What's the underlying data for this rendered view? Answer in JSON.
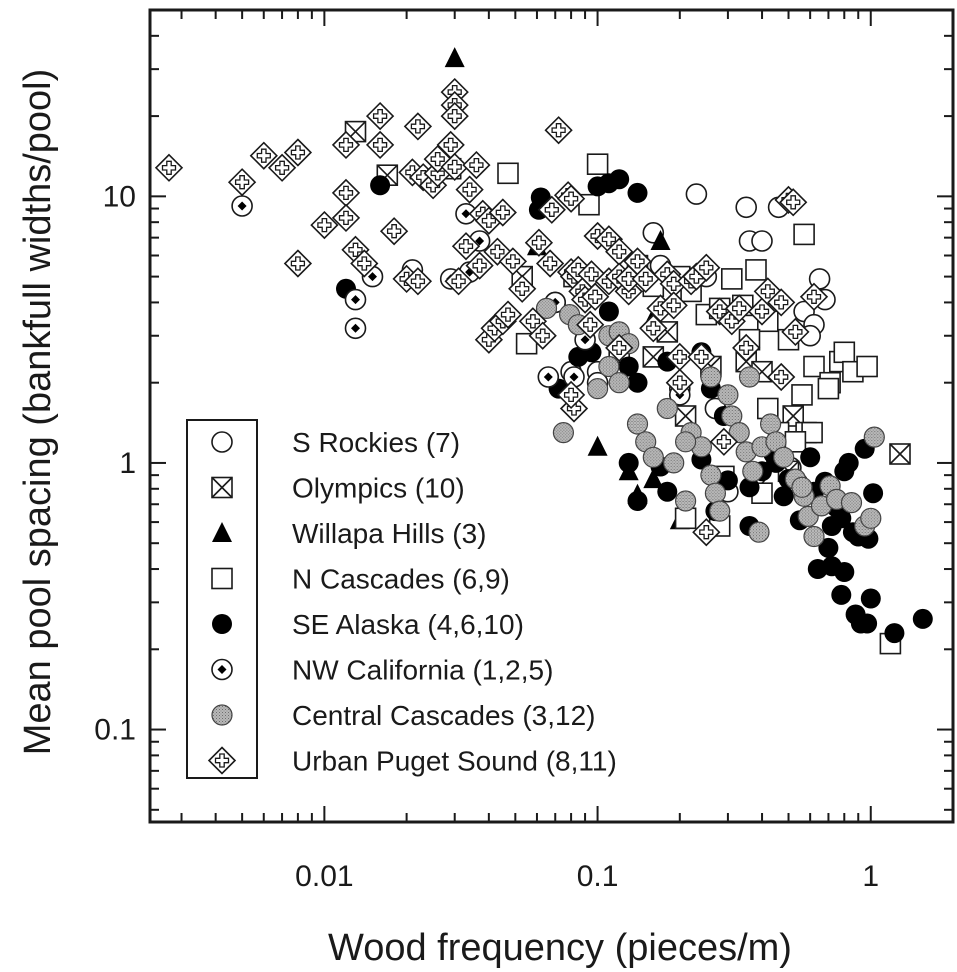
{
  "chart_data": {
    "type": "scatter",
    "xlabel": "Wood frequency (pieces/m)",
    "ylabel": "Mean pool spacing (bankfull widths/pool)",
    "x_scale": "log",
    "y_scale": "log",
    "xlim": [
      0.0023,
      2.0
    ],
    "ylim": [
      0.045,
      50
    ],
    "x_ticks": [
      {
        "value": 0.01,
        "label": "0.01"
      },
      {
        "value": 0.1,
        "label": "0.1"
      },
      {
        "value": 1,
        "label": "1"
      }
    ],
    "y_ticks": [
      {
        "value": 0.1,
        "label": "0.1"
      },
      {
        "value": 1,
        "label": "1"
      },
      {
        "value": 10,
        "label": "10"
      }
    ],
    "grid": false,
    "legend_position": "lower-left",
    "series": [
      {
        "name": "S Rockies (7)",
        "marker": "open-circle",
        "points": [
          [
            0.021,
            5.3
          ],
          [
            0.17,
            5.5
          ],
          [
            0.16,
            7.3
          ],
          [
            0.25,
            5.0
          ],
          [
            0.23,
            10.2
          ],
          [
            0.35,
            9.1
          ],
          [
            0.46,
            9.1
          ],
          [
            0.36,
            6.8
          ],
          [
            0.4,
            6.8
          ],
          [
            0.57,
            3.7
          ],
          [
            0.62,
            3.3
          ],
          [
            0.6,
            3.0
          ],
          [
            0.65,
            4.9
          ],
          [
            0.68,
            4.1
          ],
          [
            0.07,
            4.0
          ],
          [
            0.08,
            2.2
          ],
          [
            0.1,
            2.2
          ],
          [
            0.27,
            1.6
          ],
          [
            0.51,
            0.96
          ],
          [
            0.54,
            0.84
          ],
          [
            0.38,
            0.9
          ],
          [
            0.3,
            0.78
          ]
        ]
      },
      {
        "name": "Olympics (10)",
        "marker": "square-x",
        "points": [
          [
            0.013,
            17.5
          ],
          [
            0.017,
            12.0
          ],
          [
            0.053,
            5.0
          ],
          [
            0.16,
            2.5
          ],
          [
            0.18,
            3.1
          ],
          [
            0.21,
            1.5
          ],
          [
            0.26,
            2.3
          ],
          [
            0.35,
            2.4
          ],
          [
            0.4,
            2.2
          ],
          [
            0.52,
            1.5
          ],
          [
            0.5,
            0.93
          ],
          [
            1.28,
            1.08
          ]
        ]
      },
      {
        "name": "Willapa Hills (3)",
        "marker": "filled-triangle",
        "points": [
          [
            0.03,
            33.0
          ],
          [
            0.06,
            6.5
          ],
          [
            0.17,
            6.8
          ],
          [
            0.16,
            3.5
          ],
          [
            0.1,
            1.15
          ],
          [
            0.13,
            0.93
          ],
          [
            0.16,
            0.87
          ],
          [
            0.2,
            0.61
          ],
          [
            0.14,
            0.76
          ]
        ]
      },
      {
        "name": "N Cascades (6,9)",
        "marker": "open-square",
        "points": [
          [
            0.029,
            12.7
          ],
          [
            0.047,
            12.2
          ],
          [
            0.093,
            9.3
          ],
          [
            0.1,
            13.2
          ],
          [
            0.14,
            5.5
          ],
          [
            0.16,
            4.6
          ],
          [
            0.2,
            5.0
          ],
          [
            0.22,
            4.4
          ],
          [
            0.25,
            3.6
          ],
          [
            0.28,
            3.8
          ],
          [
            0.31,
            4.9
          ],
          [
            0.34,
            3.9
          ],
          [
            0.38,
            5.3
          ],
          [
            0.42,
            3.4
          ],
          [
            0.5,
            2.9
          ],
          [
            0.57,
            7.2
          ],
          [
            0.62,
            2.3
          ],
          [
            0.77,
            2.4
          ],
          [
            0.8,
            2.6
          ],
          [
            0.86,
            2.2
          ],
          [
            0.97,
            2.3
          ],
          [
            0.71,
            2.0
          ],
          [
            0.56,
            1.8
          ],
          [
            0.58,
            1.3
          ],
          [
            0.61,
            1.3
          ],
          [
            0.7,
            1.9
          ],
          [
            0.42,
            1.6
          ],
          [
            0.46,
            1.3
          ],
          [
            0.53,
            1.2
          ],
          [
            0.055,
            2.8
          ],
          [
            0.082,
            5.0
          ],
          [
            0.12,
            2.6
          ],
          [
            0.21,
            0.62
          ],
          [
            0.28,
            0.58
          ],
          [
            0.29,
            0.89
          ],
          [
            0.4,
            0.77
          ],
          [
            1.18,
            0.21
          ],
          [
            0.36,
            2.9
          ]
        ]
      },
      {
        "name": "SE Alaska (4,6,10)",
        "marker": "filled-circle",
        "points": [
          [
            0.012,
            4.5
          ],
          [
            0.016,
            11.0
          ],
          [
            0.061,
            8.9
          ],
          [
            0.062,
            9.9
          ],
          [
            0.1,
            10.9
          ],
          [
            0.11,
            11.2
          ],
          [
            0.12,
            11.6
          ],
          [
            0.14,
            10.3
          ],
          [
            0.11,
            3.7
          ],
          [
            0.072,
            1.9
          ],
          [
            0.085,
            2.5
          ],
          [
            0.095,
            2.6
          ],
          [
            0.13,
            2.3
          ],
          [
            0.14,
            2.0
          ],
          [
            0.18,
            2.4
          ],
          [
            0.24,
            2.6
          ],
          [
            0.26,
            1.9
          ],
          [
            0.29,
            1.5
          ],
          [
            0.3,
            0.86
          ],
          [
            0.36,
            0.81
          ],
          [
            0.4,
            0.93
          ],
          [
            0.45,
            1.0
          ],
          [
            0.5,
            0.87
          ],
          [
            0.55,
            0.61
          ],
          [
            0.6,
            1.05
          ],
          [
            0.62,
            0.78
          ],
          [
            0.68,
            0.85
          ],
          [
            0.72,
            0.58
          ],
          [
            0.75,
            0.68
          ],
          [
            0.78,
            0.62
          ],
          [
            0.8,
            0.93
          ],
          [
            0.83,
            1.0
          ],
          [
            0.86,
            0.55
          ],
          [
            0.9,
            0.53
          ],
          [
            0.95,
            1.13
          ],
          [
            0.98,
            0.52
          ],
          [
            1.02,
            0.77
          ],
          [
            0.7,
            0.48
          ],
          [
            0.72,
            0.41
          ],
          [
            0.78,
            0.32
          ],
          [
            0.8,
            0.39
          ],
          [
            0.88,
            0.27
          ],
          [
            0.92,
            0.25
          ],
          [
            0.97,
            0.25
          ],
          [
            1.0,
            0.31
          ],
          [
            1.22,
            0.23
          ],
          [
            1.55,
            0.26
          ],
          [
            0.14,
            0.72
          ],
          [
            0.17,
            0.97
          ],
          [
            0.21,
            1.2
          ],
          [
            0.24,
            1.03
          ],
          [
            0.27,
            0.66
          ],
          [
            0.36,
            0.58
          ],
          [
            0.44,
            1.08
          ],
          [
            0.48,
            0.75
          ],
          [
            0.64,
            0.4
          ],
          [
            0.18,
            0.78
          ],
          [
            0.13,
            1.0
          ]
        ]
      },
      {
        "name": "NW California (1,2,5)",
        "marker": "dot-circle",
        "points": [
          [
            0.005,
            9.2
          ],
          [
            0.013,
            4.1
          ],
          [
            0.013,
            3.2
          ],
          [
            0.015,
            5.0
          ],
          [
            0.029,
            4.9
          ],
          [
            0.034,
            5.2
          ],
          [
            0.033,
            8.6
          ],
          [
            0.037,
            6.8
          ],
          [
            0.066,
            2.1
          ],
          [
            0.07,
            4.0
          ],
          [
            0.082,
            2.1
          ],
          [
            0.09,
            2.9
          ],
          [
            0.1,
            2.0
          ],
          [
            0.2,
            1.9
          ],
          [
            0.2,
            1.8
          ]
        ]
      },
      {
        "name": "Central Cascades (3,12)",
        "marker": "gray-circle",
        "points": [
          [
            0.065,
            3.8
          ],
          [
            0.079,
            3.6
          ],
          [
            0.085,
            3.3
          ],
          [
            0.11,
            3.0
          ],
          [
            0.12,
            3.1
          ],
          [
            0.13,
            2.8
          ],
          [
            0.11,
            2.3
          ],
          [
            0.12,
            2.0
          ],
          [
            0.1,
            1.9
          ],
          [
            0.075,
            1.3
          ],
          [
            0.14,
            1.4
          ],
          [
            0.15,
            1.2
          ],
          [
            0.16,
            1.05
          ],
          [
            0.19,
            1.0
          ],
          [
            0.22,
            1.3
          ],
          [
            0.24,
            1.15
          ],
          [
            0.26,
            0.9
          ],
          [
            0.27,
            0.77
          ],
          [
            0.31,
            1.5
          ],
          [
            0.33,
            1.3
          ],
          [
            0.35,
            1.1
          ],
          [
            0.37,
            0.93
          ],
          [
            0.4,
            1.15
          ],
          [
            0.43,
            1.4
          ],
          [
            0.45,
            1.2
          ],
          [
            0.48,
            1.05
          ],
          [
            0.53,
            0.87
          ],
          [
            0.57,
            0.75
          ],
          [
            0.59,
            0.63
          ],
          [
            0.62,
            0.53
          ],
          [
            0.66,
            0.69
          ],
          [
            0.71,
            0.82
          ],
          [
            0.75,
            0.73
          ],
          [
            0.85,
            0.71
          ],
          [
            0.95,
            0.58
          ],
          [
            1.0,
            0.62
          ],
          [
            1.03,
            1.25
          ],
          [
            0.28,
            0.66
          ],
          [
            0.21,
            0.72
          ],
          [
            0.39,
            0.55
          ],
          [
            0.21,
            1.2
          ],
          [
            0.18,
            1.6
          ],
          [
            0.36,
            2.1
          ],
          [
            0.56,
            0.81
          ],
          [
            0.26,
            2.1
          ],
          [
            0.3,
            1.8
          ]
        ]
      },
      {
        "name": "Urban Puget Sound (8,11)",
        "marker": "diamond-plus",
        "points": [
          [
            0.0027,
            12.8
          ],
          [
            0.005,
            11.3
          ],
          [
            0.006,
            14.2
          ],
          [
            0.007,
            12.8
          ],
          [
            0.008,
            14.6
          ],
          [
            0.008,
            5.6
          ],
          [
            0.01,
            7.8
          ],
          [
            0.012,
            10.3
          ],
          [
            0.012,
            8.3
          ],
          [
            0.012,
            15.6
          ],
          [
            0.013,
            6.3
          ],
          [
            0.014,
            5.6
          ],
          [
            0.016,
            15.6
          ],
          [
            0.016,
            20.0
          ],
          [
            0.018,
            7.4
          ],
          [
            0.02,
            4.9
          ],
          [
            0.021,
            12.3
          ],
          [
            0.022,
            18.3
          ],
          [
            0.022,
            4.8
          ],
          [
            0.023,
            11.8
          ],
          [
            0.025,
            11.0
          ],
          [
            0.026,
            12.2
          ],
          [
            0.026,
            13.8
          ],
          [
            0.029,
            15.6
          ],
          [
            0.03,
            12.9
          ],
          [
            0.03,
            24.6
          ],
          [
            0.03,
            22.0
          ],
          [
            0.03,
            20.0
          ],
          [
            0.031,
            4.8
          ],
          [
            0.033,
            6.5
          ],
          [
            0.034,
            10.6
          ],
          [
            0.036,
            13.1
          ],
          [
            0.037,
            5.5
          ],
          [
            0.038,
            8.6
          ],
          [
            0.04,
            2.9
          ],
          [
            0.04,
            8.1
          ],
          [
            0.042,
            3.2
          ],
          [
            0.043,
            6.2
          ],
          [
            0.045,
            3.4
          ],
          [
            0.045,
            8.7
          ],
          [
            0.047,
            3.6
          ],
          [
            0.049,
            5.7
          ],
          [
            0.053,
            4.5
          ],
          [
            0.058,
            3.4
          ],
          [
            0.061,
            6.7
          ],
          [
            0.063,
            3.0
          ],
          [
            0.067,
            5.6
          ],
          [
            0.068,
            8.9
          ],
          [
            0.072,
            17.7
          ],
          [
            0.078,
            10.1
          ],
          [
            0.08,
            9.8
          ],
          [
            0.08,
            5.2
          ],
          [
            0.082,
            5.0
          ],
          [
            0.085,
            5.3
          ],
          [
            0.088,
            4.4
          ],
          [
            0.09,
            4.1
          ],
          [
            0.094,
            3.3
          ],
          [
            0.095,
            5.1
          ],
          [
            0.098,
            4.2
          ],
          [
            0.1,
            7.1
          ],
          [
            0.11,
            6.9
          ],
          [
            0.11,
            4.8
          ],
          [
            0.12,
            6.2
          ],
          [
            0.12,
            5.0
          ],
          [
            0.13,
            4.4
          ],
          [
            0.13,
            4.9
          ],
          [
            0.14,
            5.7
          ],
          [
            0.15,
            4.9
          ],
          [
            0.16,
            3.2
          ],
          [
            0.17,
            3.8
          ],
          [
            0.18,
            5.1
          ],
          [
            0.19,
            4.7
          ],
          [
            0.2,
            2.5
          ],
          [
            0.22,
            4.8
          ],
          [
            0.23,
            5.0
          ],
          [
            0.25,
            5.4
          ],
          [
            0.28,
            3.7
          ],
          [
            0.31,
            3.4
          ],
          [
            0.33,
            3.8
          ],
          [
            0.35,
            2.7
          ],
          [
            0.4,
            3.7
          ],
          [
            0.42,
            4.4
          ],
          [
            0.47,
            4.0
          ],
          [
            0.5,
            9.7
          ],
          [
            0.53,
            3.1
          ],
          [
            0.62,
            4.2
          ],
          [
            0.47,
            2.1
          ],
          [
            0.082,
            1.6
          ],
          [
            0.25,
            0.55
          ],
          [
            0.2,
            2.0
          ],
          [
            0.24,
            2.5
          ],
          [
            0.12,
            2.7
          ],
          [
            0.19,
            3.9
          ],
          [
            0.08,
            1.8
          ],
          [
            0.29,
            1.2
          ],
          [
            0.52,
            9.5
          ]
        ]
      }
    ]
  }
}
